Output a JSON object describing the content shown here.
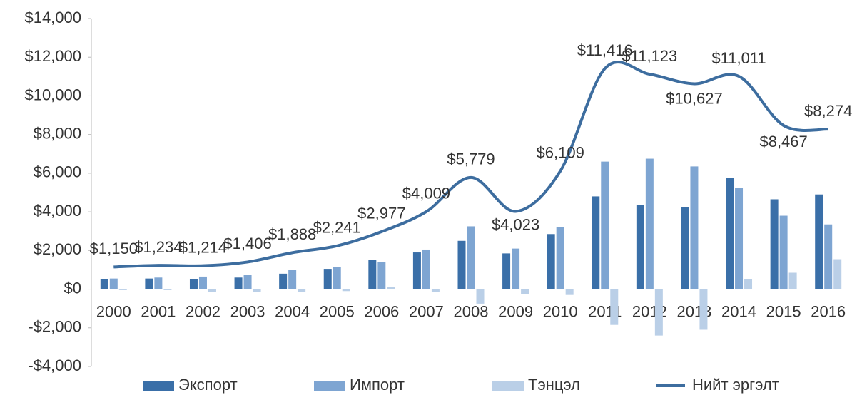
{
  "chart_data": {
    "type": "bar+line",
    "categories": [
      "2000",
      "2001",
      "2002",
      "2003",
      "2004",
      "2005",
      "2006",
      "2007",
      "2008",
      "2009",
      "2010",
      "2011",
      "2012",
      "2013",
      "2014",
      "2015",
      "2016"
    ],
    "series": [
      {
        "name": "Экспорт",
        "type": "bar",
        "color": "#3a6fa8",
        "values": [
          500,
          550,
          500,
          600,
          800,
          1050,
          1500,
          1900,
          2500,
          1850,
          2850,
          4800,
          4350,
          4250,
          5750,
          4650,
          4900
        ]
      },
      {
        "name": "Импорт",
        "type": "bar",
        "color": "#7ea5d2",
        "values": [
          550,
          600,
          650,
          750,
          1000,
          1150,
          1400,
          2050,
          3250,
          2100,
          3200,
          6600,
          6750,
          6350,
          5250,
          3800,
          3350
        ]
      },
      {
        "name": "Тэнцэл",
        "type": "bar",
        "color": "#bacfe7",
        "values": [
          -50,
          -50,
          -150,
          -150,
          -150,
          -100,
          100,
          -150,
          -750,
          -250,
          -300,
          -1850,
          -2400,
          -2100,
          500,
          850,
          1550
        ]
      },
      {
        "name": "Нийт эргэлт",
        "type": "line",
        "color": "#3d6d9f",
        "values": [
          1150,
          1234,
          1214,
          1406,
          1888,
          2241,
          2977,
          4009,
          5779,
          4023,
          6109,
          11416,
          11123,
          10627,
          11011,
          8467,
          8274
        ],
        "value_labels": [
          "$1,150",
          "$1,234",
          "$1,214",
          "$1,406",
          "$1,888",
          "$2,241",
          "$2,977",
          "$4,009",
          "$5,779",
          "$4,023",
          "$6,109",
          "$11,416",
          "$11,123",
          "$10,627",
          "$11,011",
          "$8,467",
          "$8,274"
        ]
      }
    ],
    "ylim": [
      -4000,
      14000
    ],
    "yticks": [
      {
        "value": -4000,
        "label": "-$4,000"
      },
      {
        "value": -2000,
        "label": "-$2,000"
      },
      {
        "value": 0,
        "label": "$0"
      },
      {
        "value": 2000,
        "label": "$2,000"
      },
      {
        "value": 4000,
        "label": "$4,000"
      },
      {
        "value": 6000,
        "label": "$6,000"
      },
      {
        "value": 8000,
        "label": "$8,000"
      },
      {
        "value": 10000,
        "label": "$10,000"
      },
      {
        "value": 12000,
        "label": "$12,000"
      },
      {
        "value": 14000,
        "label": "$14,000"
      }
    ],
    "legend": "bottom"
  }
}
